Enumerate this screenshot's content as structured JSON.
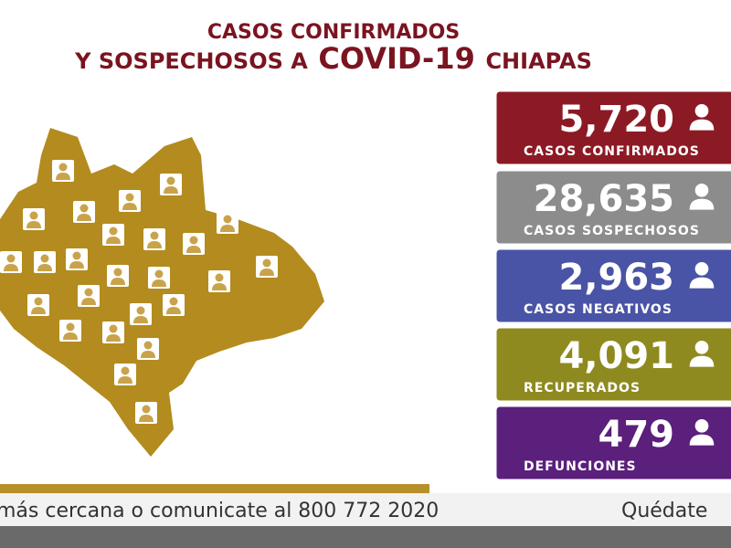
{
  "header": {
    "line1": "CASOS CONFIRMADOS",
    "line2_prefix": "Y SOSPECHOSOS A",
    "line2_highlight": "COVID-19",
    "line2_suffix": "CHIAPAS"
  },
  "stats": [
    {
      "value": "5,720",
      "label": "CASOS CONFIRMADOS"
    },
    {
      "value": "28,635",
      "label": "CASOS SOSPECHOSOS"
    },
    {
      "value": "2,963",
      "label": "CASOS NEGATIVOS"
    },
    {
      "value": "4,091",
      "label": "RECUPERADOS"
    },
    {
      "value": "479",
      "label": "DEFUNCIONES"
    }
  ],
  "ticker": {
    "text": "más cercana o comunicate al 800 772 2020",
    "right": "Quédate"
  }
}
